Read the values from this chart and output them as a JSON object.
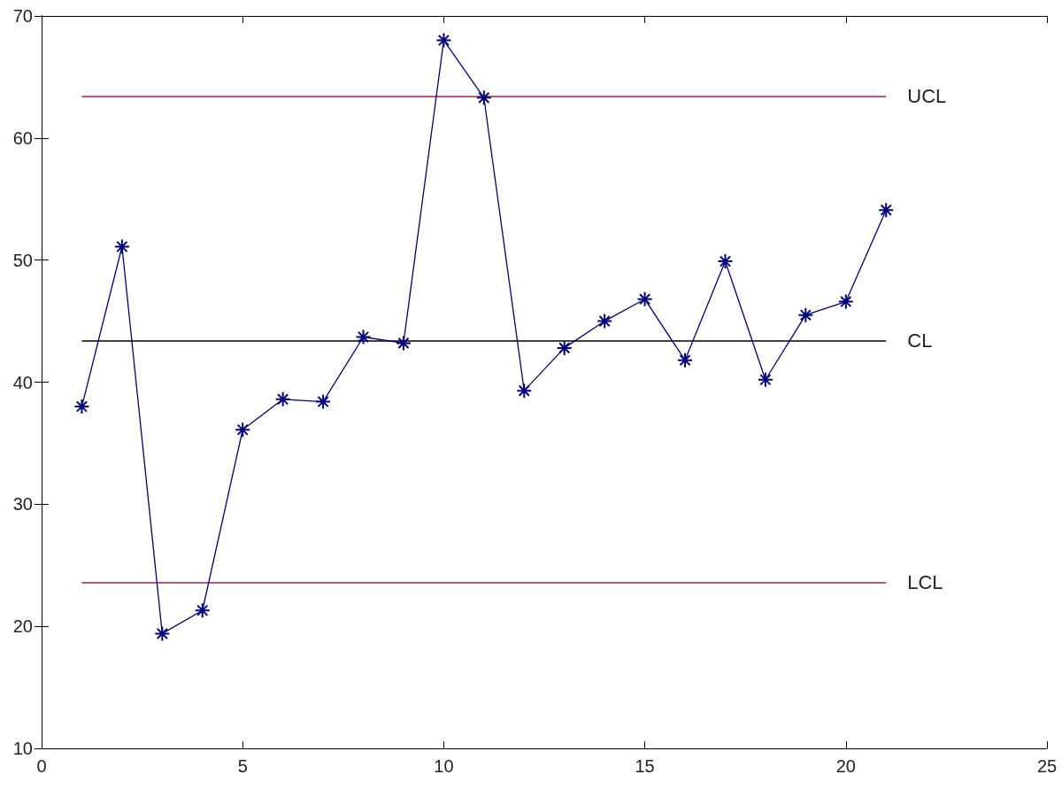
{
  "chart_data": {
    "type": "line",
    "x": [
      1,
      2,
      3,
      4,
      5,
      6,
      7,
      8,
      9,
      10,
      11,
      12,
      13,
      14,
      15,
      16,
      17,
      18,
      19,
      20,
      21
    ],
    "series": [
      {
        "color": "#00007f",
        "values": [
          38.0,
          51.1,
          19.4,
          21.3,
          36.1,
          38.6,
          38.4,
          43.7,
          43.2,
          68.0,
          63.3,
          39.3,
          42.8,
          45.0,
          46.8,
          41.8,
          49.9,
          40.2,
          45.5,
          46.6,
          54.1
        ]
      }
    ],
    "xlim": [
      0,
      25
    ],
    "xticks": [
      0,
      5,
      10,
      15,
      20,
      25
    ],
    "ylim": [
      10,
      70
    ],
    "yticks": [
      10,
      20,
      30,
      40,
      50,
      60,
      70
    ],
    "ref_lines": [
      {
        "axis": "y",
        "value": 63.4,
        "label": "UCL",
        "color": "#a0203c"
      },
      {
        "axis": "y",
        "value": 43.4,
        "label": "CL",
        "color": "#000000"
      },
      {
        "axis": "y",
        "value": 23.6,
        "label": "LCL",
        "color": "#a0203c"
      }
    ],
    "grid": false,
    "marker": "cross",
    "line_style": "solid"
  }
}
